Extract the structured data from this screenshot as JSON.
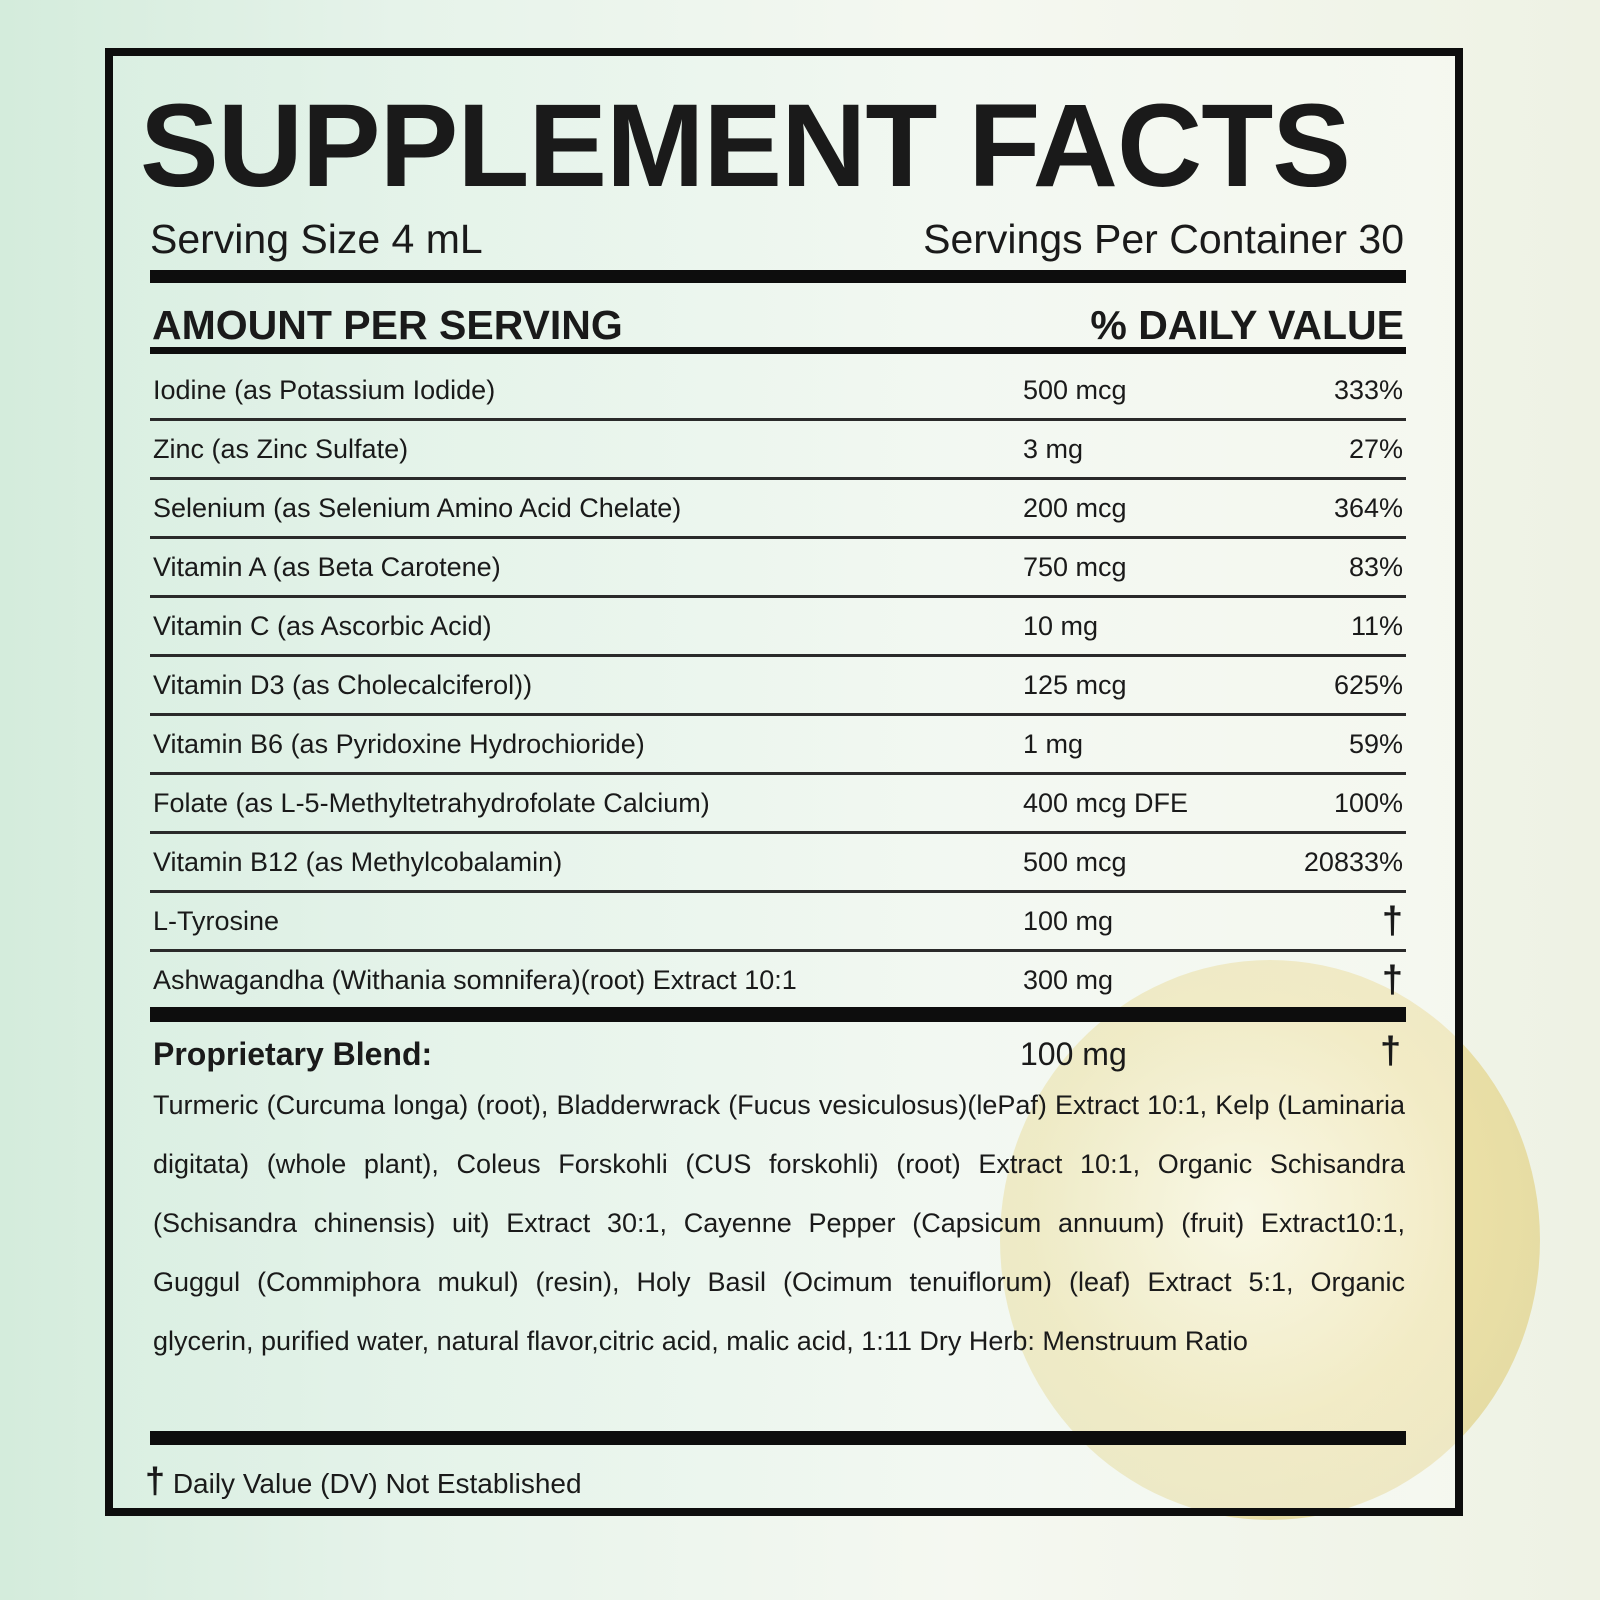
{
  "title": "SUPPLEMENT FACTS",
  "serving_size": "Serving Size 4 mL",
  "servings_per_container": "Servings Per Container 30",
  "header": {
    "amount": "AMOUNT PER SERVING",
    "dv": "% DAILY VALUE"
  },
  "rows": [
    {
      "name": "Iodine (as Potassium Iodide)",
      "amount": "500 mcg",
      "dv": "333%"
    },
    {
      "name": "Zinc (as Zinc Sulfate)",
      "amount": "3 mg",
      "dv": "27%"
    },
    {
      "name": "Selenium (as Selenium Amino Acid Chelate)",
      "amount": "200 mcg",
      "dv": "364%"
    },
    {
      "name": "Vitamin A (as Beta Carotene)",
      "amount": "750 mcg",
      "dv": "83%"
    },
    {
      "name": "Vitamin C (as Ascorbic Acid)",
      "amount": "10 mg",
      "dv": "11%"
    },
    {
      "name": "Vitamin D3 (as Cholecalciferol))",
      "amount": "125 mcg",
      "dv": "625%"
    },
    {
      "name": "Vitamin B6 (as Pyridoxine Hydrochioride)",
      "amount": "1 mg",
      "dv": "59%"
    },
    {
      "name": "Folate (as L-5-Methyltetrahydrofolate Calcium)",
      "amount": "400 mcg DFE",
      "dv": "100%"
    },
    {
      "name": "Vitamin B12 (as Methylcobalamin)",
      "amount": "500 mcg",
      "dv": "20833%"
    },
    {
      "name": "L-Tyrosine",
      "amount": "100 mg",
      "dv": "†"
    },
    {
      "name": "Ashwagandha (Withania somnifera)(root) Extract 10:1",
      "amount": "300 mg",
      "dv": "†"
    }
  ],
  "blend": {
    "label": "Proprietary Blend:",
    "amount": "100 mg",
    "dv": "†",
    "ingredients": "Turmeric (Curcuma longa) (root), Bladderwrack (Fucus vesiculosus)(lePaf) Extract 10:1, Kelp (Laminaria digitata) (whole plant), Coleus Forskohli (CUS forskohli) (root) Extract 10:1, Organic Schisandra (Schisandra chinensis) uit) Extract 30:1, Cayenne Pepper (Capsicum annuum) (fruit) Extract10:1, Guggul (Commiphora mukul) (resin), Holy Basil (Ocimum tenuiflorum) (leaf) Extract 5:1, Organic glycerin, purified water, natural flavor,citric acid, malic acid, 1:11 Dry Herb: Menstruum Ratio"
  },
  "footnote": {
    "symbol": "†",
    "text": "Daily Value (DV) Not Established"
  }
}
